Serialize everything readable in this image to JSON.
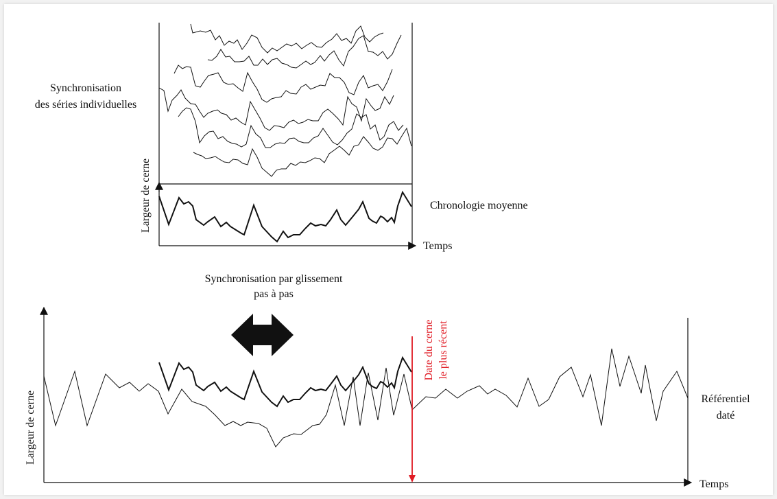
{
  "labels": {
    "sync_individual_line1": "Synchronisation",
    "sync_individual_line2": "des séries individuelles",
    "mean_chronology": "Chronologie moyenne",
    "ring_width_top": "Largeur de cerne",
    "time_top": "Temps",
    "sliding_sync_line1": "Synchronisation par glissement",
    "sliding_sync_line2": "pas à pas",
    "ring_width_bottom": "Largeur de cerne",
    "time_bottom": "Temps",
    "reference_line1": "Référentiel",
    "reference_line2": "daté",
    "latest_ring_line1": "Date du cerne",
    "latest_ring_line2": "le plus récent"
  },
  "colors": {
    "ink": "#111111",
    "accent": "#e01b24"
  },
  "icons": {
    "slide": "double-arrow-icon"
  }
}
